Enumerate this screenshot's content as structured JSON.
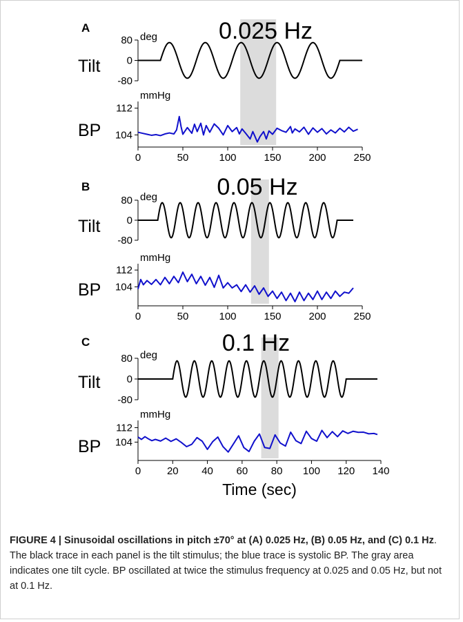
{
  "chart_data": [
    {
      "panel": "A",
      "type": "line",
      "freq_label": "0.025 Hz",
      "tilt": {
        "label": "Tilt",
        "unit": "deg",
        "ticks": [
          80,
          0,
          -80
        ],
        "ylim": [
          -80,
          80
        ],
        "color": "#000000",
        "stimulus": {
          "frequency_hz": 0.025,
          "amplitude_deg": 70,
          "start_sec": 25,
          "end_sec": 225,
          "x_end_sec": 250
        }
      },
      "bp": {
        "label": "BP",
        "unit": "mmHg",
        "ticks": [
          112,
          104
        ],
        "ylim": [
          101,
          114
        ],
        "color": "#1010cc",
        "x": [
          0,
          5,
          10,
          15,
          20,
          25,
          30,
          35,
          40,
          43,
          46,
          48,
          50,
          55,
          60,
          63,
          66,
          70,
          73,
          76,
          80,
          85,
          90,
          95,
          100,
          105,
          110,
          113,
          116,
          120,
          125,
          128,
          130,
          133,
          136,
          140,
          143,
          146,
          150,
          155,
          160,
          165,
          170,
          172,
          175,
          180,
          185,
          190,
          195,
          200,
          205,
          210,
          215,
          220,
          225,
          230,
          235,
          240,
          245
        ],
        "values": [
          104.8,
          104.5,
          104.2,
          103.9,
          104.1,
          103.8,
          104.3,
          104.6,
          104.3,
          105.5,
          109.5,
          106.5,
          104.2,
          106.2,
          104.5,
          107.2,
          105.0,
          107.5,
          104.0,
          106.8,
          104.8,
          107.3,
          106.0,
          104.0,
          106.8,
          105.0,
          106.2,
          104.3,
          105.8,
          104.5,
          102.8,
          105.0,
          103.8,
          101.9,
          103.5,
          105.0,
          102.8,
          105.2,
          104.2,
          106.0,
          105.3,
          104.8,
          106.5,
          104.6,
          105.8,
          104.9,
          106.3,
          104.2,
          106.1,
          104.8,
          105.9,
          104.3,
          105.5,
          104.6,
          106.0,
          104.9,
          106.3,
          105.1,
          105.7
        ],
        "shade_sec": [
          114,
          154
        ]
      },
      "x_axis": {
        "xlim": [
          0,
          250
        ],
        "ticks": [
          0,
          50,
          100,
          150,
          200,
          250
        ]
      }
    },
    {
      "panel": "B",
      "type": "line",
      "freq_label": "0.05 Hz",
      "tilt": {
        "label": "Tilt",
        "unit": "deg",
        "ticks": [
          80,
          0,
          -80
        ],
        "ylim": [
          -80,
          80
        ],
        "color": "#000000",
        "stimulus": {
          "frequency_hz": 0.05,
          "amplitude_deg": 70,
          "start_sec": 22,
          "end_sec": 222,
          "x_end_sec": 240
        }
      },
      "bp": {
        "label": "BP",
        "unit": "mmHg",
        "ticks": [
          112,
          104
        ],
        "ylim": [
          96,
          115
        ],
        "color": "#1010cc",
        "x": [
          0,
          3,
          6,
          10,
          15,
          20,
          25,
          30,
          35,
          40,
          45,
          50,
          55,
          60,
          65,
          70,
          75,
          80,
          85,
          90,
          95,
          100,
          105,
          110,
          115,
          120,
          125,
          130,
          135,
          140,
          145,
          150,
          155,
          160,
          165,
          170,
          175,
          180,
          185,
          190,
          195,
          200,
          205,
          210,
          215,
          220,
          225,
          230,
          235,
          240
        ],
        "values": [
          103.0,
          107.5,
          105.0,
          107.0,
          105.2,
          107.5,
          105.0,
          108.5,
          105.5,
          109.0,
          106.0,
          111.0,
          106.5,
          110.0,
          105.5,
          109.0,
          104.8,
          108.5,
          103.8,
          109.5,
          103.5,
          106.0,
          103.5,
          105.0,
          101.8,
          105.0,
          101.5,
          104.5,
          100.5,
          103.5,
          99.5,
          102.0,
          98.5,
          101.5,
          97.5,
          101.0,
          97.0,
          101.5,
          97.5,
          101.0,
          98.0,
          102.0,
          98.0,
          101.5,
          98.5,
          102.0,
          99.5,
          101.5,
          101.0,
          103.5
        ],
        "shade_sec": [
          126,
          146
        ]
      },
      "x_axis": {
        "xlim": [
          0,
          250
        ],
        "ticks": [
          0,
          50,
          100,
          150,
          200,
          250
        ]
      }
    },
    {
      "panel": "C",
      "type": "line",
      "freq_label": "0.1 Hz",
      "tilt": {
        "label": "Tilt",
        "unit": "deg",
        "ticks": [
          80,
          0,
          -80
        ],
        "ylim": [
          -80,
          80
        ],
        "color": "#000000",
        "stimulus": {
          "frequency_hz": 0.1,
          "amplitude_deg": 70,
          "start_sec": 20,
          "end_sec": 120,
          "x_end_sec": 138
        }
      },
      "bp": {
        "label": "BP",
        "unit": "mmHg",
        "ticks": [
          112,
          104
        ],
        "ylim": [
          95,
          116
        ],
        "color": "#1010cc",
        "x": [
          0,
          2,
          4,
          6,
          8,
          10,
          13,
          16,
          19,
          22,
          25,
          28,
          31,
          34,
          37,
          40,
          43,
          46,
          49,
          52,
          55,
          58,
          61,
          64,
          67,
          70,
          73,
          76,
          79,
          82,
          85,
          88,
          91,
          94,
          97,
          100,
          103,
          106,
          109,
          112,
          115,
          118,
          121,
          124,
          127,
          130,
          133,
          136,
          138
        ],
        "values": [
          106.8,
          105.5,
          107.0,
          105.8,
          104.8,
          105.5,
          104.6,
          106.2,
          104.4,
          105.8,
          103.8,
          101.5,
          102.8,
          106.5,
          104.5,
          100.0,
          104.2,
          106.8,
          101.5,
          98.5,
          103.0,
          107.5,
          101.0,
          98.8,
          104.5,
          108.5,
          101.0,
          100.5,
          108.0,
          103.5,
          101.8,
          109.5,
          104.8,
          103.2,
          110.0,
          106.0,
          104.5,
          110.5,
          106.5,
          109.8,
          107.0,
          110.2,
          108.8,
          110.0,
          109.4,
          109.5,
          108.6,
          108.8,
          108.2
        ],
        "shade_sec": [
          71,
          81
        ]
      },
      "x_axis": {
        "xlim": [
          0,
          140
        ],
        "ticks": [
          0,
          20,
          40,
          60,
          80,
          100,
          120,
          140
        ],
        "label": "Time (sec)"
      }
    }
  ],
  "caption": {
    "title": "FIGURE 4 | Sinusoidal oscillations in pitch ±70° at (A) 0.025 Hz, (B) 0.05 Hz, and (C) 0.1 Hz",
    "body": ". The black trace in each panel is the tilt stimulus; the blue trace is systolic BP. The gray area indicates one tilt cycle. BP oscillated at twice the stimulus frequency at 0.025 and 0.05 Hz, but not at 0.1 Hz."
  },
  "colors": {
    "shade": "#dcdcdc",
    "tilt_trace": "#000000",
    "bp_trace": "#1010cc"
  }
}
